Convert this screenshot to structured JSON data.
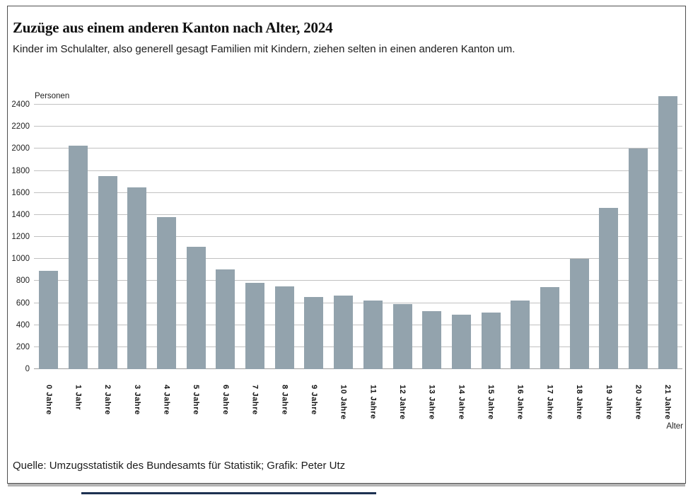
{
  "header": {
    "title": "Zuzüge aus einem anderen Kanton nach Alter, 2024",
    "subtitle": "Kinder im Schulalter, also generell gesagt Familien mit Kindern, ziehen selten in einen anderen Kanton um."
  },
  "chart_data": {
    "type": "bar",
    "title": "Zuzüge aus einem anderen Kanton nach Alter, 2024",
    "ylabel": "Personen",
    "xlabel": "Alter",
    "categories": [
      "0 Jahre",
      "1 Jahr",
      "2 Jahre",
      "3 Jahre",
      "4 Jahre",
      "5 Jahre",
      "6 Jahre",
      "7 Jahre",
      "8 Jahre",
      "9 Jahre",
      "10 Jahre",
      "11 Jahre",
      "12 Jahre",
      "13 Jahre",
      "14 Jahre",
      "15 Jahre",
      "16 Jahre",
      "17 Jahre",
      "18 Jahre",
      "19 Jahre",
      "20 Jahre",
      "21 Jahre"
    ],
    "values": [
      890,
      2030,
      1750,
      1650,
      1380,
      1110,
      905,
      785,
      750,
      655,
      665,
      620,
      590,
      525,
      495,
      515,
      620,
      745,
      1000,
      1465,
      2005,
      2480
    ],
    "ylim": [
      0,
      2400
    ],
    "yticks": [
      0,
      200,
      400,
      600,
      800,
      1000,
      1200,
      1400,
      1600,
      1800,
      2000,
      2200,
      2400
    ],
    "grid": true,
    "legend": false,
    "bar_color": "#93a3ad"
  },
  "footer": {
    "source": "Quelle: Umzugsstatistik des Bundesamts für Statistik; Grafik: Peter Utz"
  },
  "colors": {
    "bar": "#93a3ad",
    "gridline": "#c1c1c1",
    "frame_border": "#4f4f4f",
    "artifact_line": "#1c3050"
  }
}
